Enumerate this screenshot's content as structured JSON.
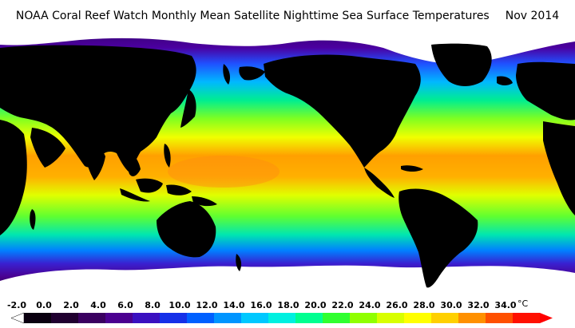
{
  "title": {
    "text": "NOAA Coral Reef Watch Monthly Mean Satellite Nighttime Sea Surface Temperatures",
    "date": "Nov 2014"
  },
  "legend": {
    "ticks": [
      "-2.0",
      "0.0",
      "2.0",
      "4.0",
      "6.0",
      "8.0",
      "10.0",
      "12.0",
      "14.0",
      "16.0",
      "18.0",
      "20.0",
      "22.0",
      "24.0",
      "26.0",
      "28.0",
      "30.0",
      "32.0",
      "34.0"
    ],
    "unit": "°C",
    "colors": [
      "#0a0010",
      "#200030",
      "#3a0060",
      "#4b0090",
      "#3a10c0",
      "#1530e8",
      "#0060ff",
      "#0095ff",
      "#00c8ff",
      "#00f0e0",
      "#00ff90",
      "#30ff30",
      "#90ff00",
      "#d8ff00",
      "#ffff00",
      "#ffd000",
      "#ff9000",
      "#ff5000",
      "#ff1000"
    ]
  }
}
